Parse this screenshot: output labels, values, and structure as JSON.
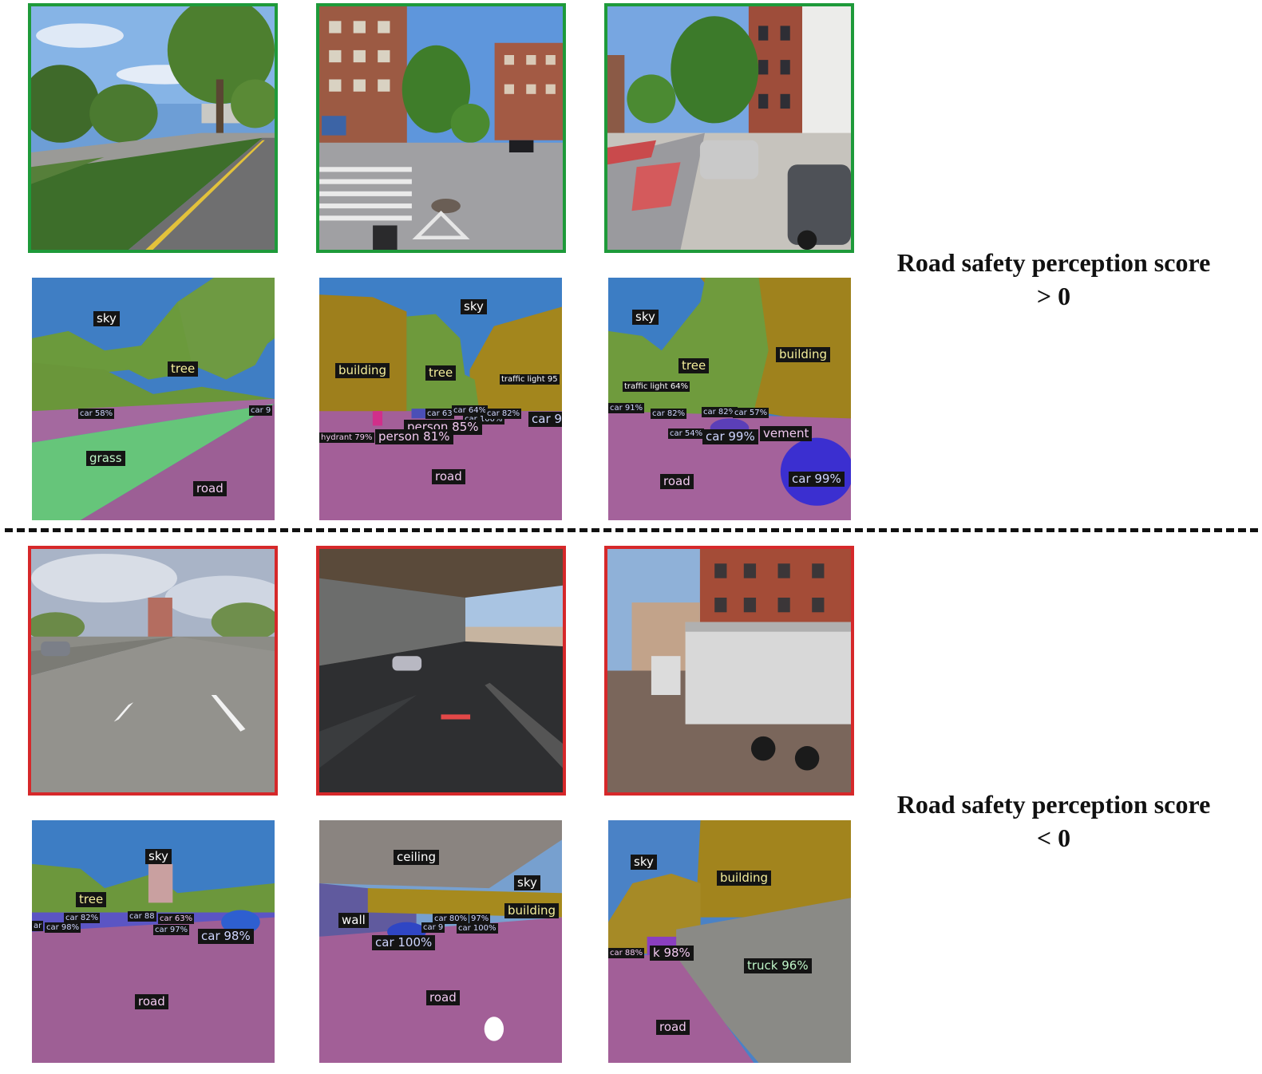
{
  "positive": {
    "score_line1": "Road safety perception score",
    "score_line2": "> 0",
    "border_color": "#1e9a3a",
    "seg": [
      {
        "sky": "sky",
        "tree": "tree",
        "car1": "car 58%",
        "car2": "car 9",
        "grass": "grass",
        "road": "road"
      },
      {
        "sky": "sky",
        "building": "building",
        "tree": "tree",
        "tl": "traffic light 95",
        "car1": "car 63",
        "car2": "car 64%",
        "car3": "car 100%",
        "car4": "car 82%",
        "car5": "car 96",
        "person1": "person 85%",
        "person2": "person 81%",
        "hydrant": "hydrant 79%",
        "road": "road"
      },
      {
        "sky": "sky",
        "building": "building",
        "tree": "tree",
        "tl": "traffic light 64%",
        "car1": "car 91%",
        "car2": "car 82%",
        "car3": "car 82%",
        "car4": "car 57%",
        "car5": "car 54%",
        "car6": "car 99%",
        "pavement": "vement",
        "road": "road",
        "car7": "car 99%"
      }
    ]
  },
  "negative": {
    "score_line1": "Road safety perception score",
    "score_line2": "< 0",
    "border_color": "#d6282a",
    "seg": [
      {
        "sky": "sky",
        "tree": "tree",
        "car1": "ar",
        "car2": "car 82%",
        "car3": "car 98%",
        "car4": "car 88",
        "car5": "car 63%",
        "car6": "car 97%",
        "car7": "car 98%",
        "road": "road"
      },
      {
        "ceiling": "ceiling",
        "sky": "sky",
        "wall": "wall",
        "building": "building",
        "car1": "car 80%",
        "car2": "97%",
        "car3": "car 9",
        "car4": "car 100%",
        "car5": "car 100%",
        "road": "road"
      },
      {
        "sky": "sky",
        "building": "building",
        "car1": "car 88%",
        "truck_small": "k 98%",
        "truck": "truck 96%",
        "road": "road"
      }
    ]
  }
}
